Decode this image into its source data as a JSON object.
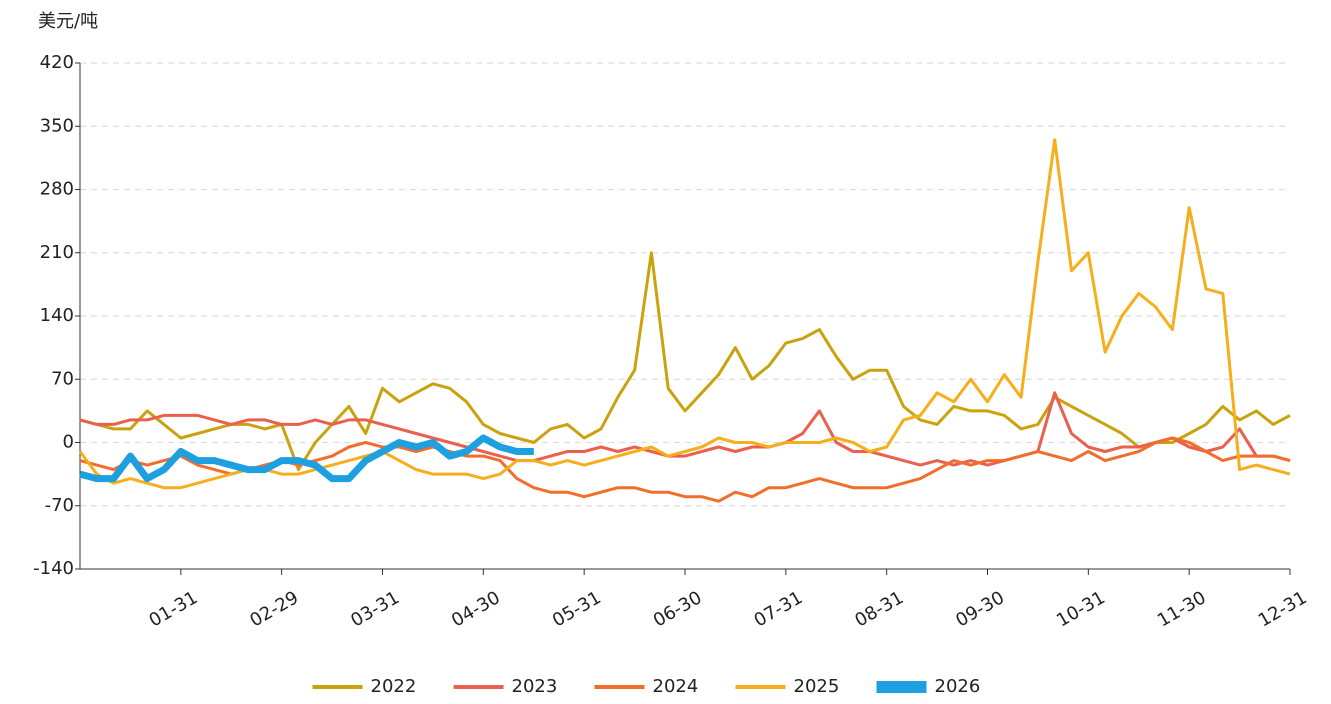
{
  "chart_data": {
    "type": "line",
    "y_label": "美元/吨",
    "categories": [
      null,
      null,
      null,
      null,
      null,
      null,
      "01-31",
      null,
      null,
      null,
      null,
      null,
      "02-29",
      null,
      null,
      null,
      null,
      null,
      "03-31",
      null,
      null,
      null,
      null,
      null,
      "04-30",
      null,
      null,
      null,
      null,
      null,
      "05-31",
      null,
      null,
      null,
      null,
      null,
      "06-30",
      null,
      null,
      null,
      null,
      null,
      "07-31",
      null,
      null,
      null,
      null,
      null,
      "08-31",
      null,
      null,
      null,
      null,
      null,
      "09-30",
      null,
      null,
      null,
      null,
      null,
      "10-31",
      null,
      null,
      null,
      null,
      null,
      "11-30",
      null,
      null,
      null,
      null,
      null,
      "12-31"
    ],
    "ylim": [
      -140,
      420
    ],
    "yticks": [
      -140,
      -70,
      0,
      70,
      140,
      210,
      280,
      350,
      420
    ],
    "grid": true,
    "legend": "bottom",
    "series": [
      {
        "name": "2022",
        "color": "#c9a20e",
        "width": 3,
        "values": [
          25,
          20,
          15,
          15,
          35,
          20,
          5,
          10,
          15,
          20,
          20,
          15,
          20,
          -30,
          0,
          20,
          40,
          10,
          60,
          45,
          55,
          65,
          60,
          45,
          20,
          10,
          5,
          0,
          15,
          20,
          5,
          15,
          50,
          80,
          210,
          60,
          35,
          55,
          75,
          105,
          70,
          85,
          110,
          115,
          125,
          95,
          70,
          80,
          80,
          40,
          25,
          20,
          40,
          35,
          35,
          30,
          15,
          20,
          50,
          40,
          30,
          20,
          10,
          -5,
          0,
          0,
          10,
          20,
          40,
          25,
          35,
          20,
          30
        ]
      },
      {
        "name": "2023",
        "color": "#ea5f4d",
        "width": 3,
        "values": [
          25,
          20,
          20,
          25,
          25,
          30,
          30,
          30,
          25,
          20,
          25,
          25,
          20,
          20,
          25,
          20,
          25,
          25,
          20,
          15,
          10,
          5,
          0,
          -5,
          -10,
          -15,
          -20,
          -20,
          -15,
          -10,
          -10,
          -5,
          -10,
          -5,
          -10,
          -15,
          -15,
          -10,
          -5,
          -10,
          -5,
          -5,
          0,
          10,
          35,
          0,
          -10,
          -10,
          -15,
          -20,
          -25,
          -20,
          -25,
          -20,
          -25,
          -20,
          -15,
          -10,
          55,
          10,
          -5,
          -10,
          -5,
          -5,
          0,
          5,
          -5,
          -10,
          -5,
          15,
          -15,
          -15,
          -20
        ]
      },
      {
        "name": "2024",
        "color": "#f26d2b",
        "width": 3,
        "values": [
          -20,
          -25,
          -30,
          -20,
          -25,
          -20,
          -15,
          -25,
          -30,
          -35,
          -30,
          -25,
          -20,
          -25,
          -20,
          -15,
          -5,
          0,
          -5,
          -5,
          -10,
          -5,
          -10,
          -15,
          -15,
          -20,
          -40,
          -50,
          -55,
          -55,
          -60,
          -55,
          -50,
          -50,
          -55,
          -55,
          -60,
          -60,
          -65,
          -55,
          -60,
          -50,
          -50,
          -45,
          -40,
          -45,
          -50,
          -50,
          -50,
          -45,
          -40,
          -30,
          -20,
          -25,
          -20,
          -20,
          -15,
          -10,
          -15,
          -20,
          -10,
          -20,
          -15,
          -10,
          0,
          5,
          0,
          -10,
          -20,
          -15,
          -15,
          -15,
          -20
        ]
      },
      {
        "name": "2025",
        "color": "#f7ae1c",
        "width": 3,
        "values": [
          -10,
          -35,
          -45,
          -40,
          -45,
          -50,
          -50,
          -45,
          -40,
          -35,
          -30,
          -30,
          -35,
          -35,
          -30,
          -25,
          -20,
          -15,
          -10,
          -20,
          -30,
          -35,
          -35,
          -35,
          -40,
          -35,
          -20,
          -20,
          -25,
          -20,
          -25,
          -20,
          -15,
          -10,
          -5,
          -15,
          -10,
          -5,
          5,
          0,
          0,
          -5,
          0,
          0,
          0,
          5,
          0,
          -10,
          -5,
          25,
          30,
          55,
          45,
          70,
          45,
          75,
          50,
          200,
          335,
          190,
          210,
          100,
          140,
          165,
          150,
          125,
          260,
          170,
          165,
          -30,
          -25,
          -30,
          -35
        ]
      },
      {
        "name": "2026",
        "color": "#1e9fe0",
        "width": 7,
        "values": [
          -35,
          -40,
          -40,
          -15,
          -40,
          -30,
          -10,
          -20,
          -20,
          -25,
          -30,
          -30,
          -20,
          -20,
          -25,
          -40,
          -40,
          -20,
          -10,
          0,
          -5,
          0,
          -15,
          -10,
          5,
          -5,
          -10,
          -10,
          null,
          null,
          null,
          null,
          null,
          null,
          null,
          null,
          null,
          null,
          null,
          null,
          null,
          null,
          null,
          null,
          null,
          null,
          null,
          null,
          null,
          null,
          null,
          null,
          null,
          null,
          null,
          null,
          null,
          null,
          null,
          null,
          null,
          null,
          null,
          null,
          null,
          null,
          null,
          null,
          null,
          null,
          null,
          null,
          null
        ]
      }
    ]
  }
}
